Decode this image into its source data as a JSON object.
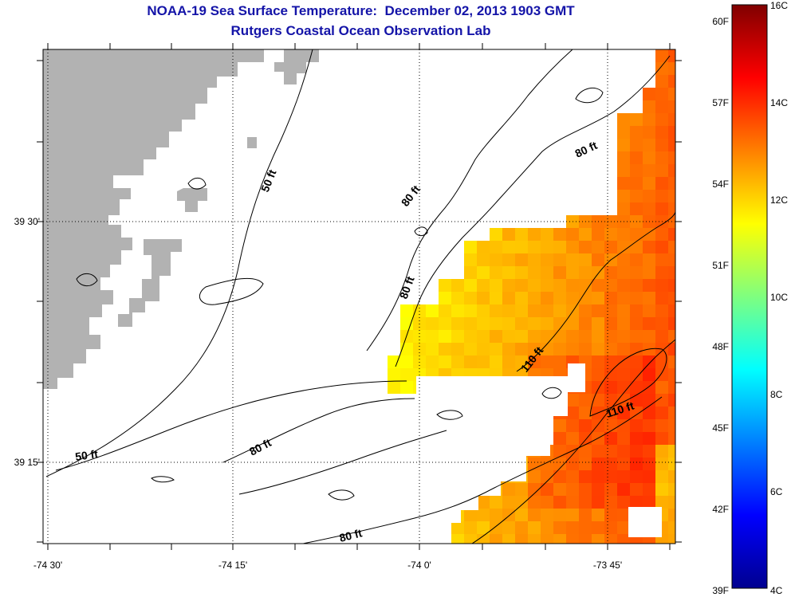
{
  "title": {
    "line1": "NOAA-19 Sea Surface Temperature:  December 02, 2013 1903 GMT",
    "line2": "Rutgers Coastal Ocean Observation Lab"
  },
  "map": {
    "land_color": "#b2b2b2",
    "no_data_color": "#ffffff",
    "x_ticks": [
      "-74 30'",
      "-74 15'",
      "-74 0'",
      "-73 45'"
    ],
    "y_ticks": [
      "39 30'",
      "39 15'"
    ],
    "contour_labels": [
      "50 ft",
      "50 ft",
      "80 ft",
      "80 ft",
      "80 ft",
      "80 ft",
      "80 ft",
      "110 ft",
      "110 ft"
    ]
  },
  "colorbar": {
    "fahrenheit_labels": [
      "60F",
      "57F",
      "54F",
      "51F",
      "48F",
      "45F",
      "42F",
      "39F"
    ],
    "celsius_labels": [
      "16C",
      "14C",
      "12C",
      "10C",
      "8C",
      "6C",
      "4C"
    ],
    "min_c": 4,
    "max_c": 16,
    "colormap": "jet"
  }
}
